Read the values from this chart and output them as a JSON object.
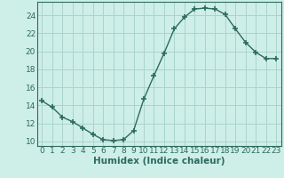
{
  "x": [
    0,
    1,
    2,
    3,
    4,
    5,
    6,
    7,
    8,
    9,
    10,
    11,
    12,
    13,
    14,
    15,
    16,
    17,
    18,
    19,
    20,
    21,
    22,
    23
  ],
  "y": [
    14.5,
    13.8,
    12.7,
    12.2,
    11.5,
    10.8,
    10.2,
    10.1,
    10.2,
    11.2,
    14.7,
    17.3,
    19.8,
    22.5,
    23.8,
    24.7,
    24.8,
    24.7,
    24.1,
    22.5,
    21.0,
    19.9,
    19.2,
    19.2
  ],
  "xlabel": "Humidex (Indice chaleur)",
  "ylim": [
    9.5,
    25.5
  ],
  "xlim": [
    -0.5,
    23.5
  ],
  "yticks": [
    10,
    12,
    14,
    16,
    18,
    20,
    22,
    24
  ],
  "xticks": [
    0,
    1,
    2,
    3,
    4,
    5,
    6,
    7,
    8,
    9,
    10,
    11,
    12,
    13,
    14,
    15,
    16,
    17,
    18,
    19,
    20,
    21,
    22,
    23
  ],
  "line_color": "#2d6b5e",
  "marker": "+",
  "marker_size": 4,
  "marker_lw": 1.2,
  "bg_color": "#ceeee8",
  "grid_color": "#aad4ce",
  "axis_color": "#2d6b5e",
  "tick_label_fontsize": 6.5,
  "xlabel_fontsize": 7.5,
  "line_width": 1.0
}
